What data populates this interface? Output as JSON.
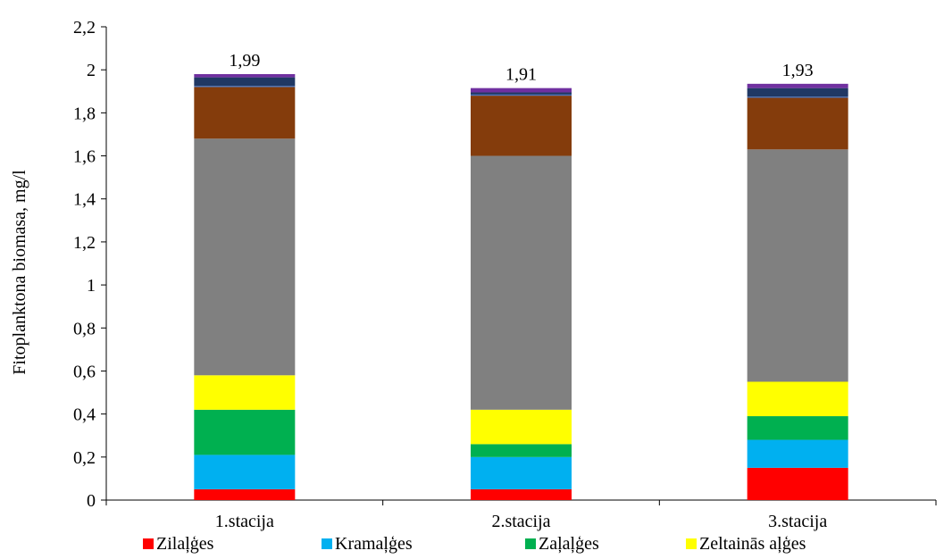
{
  "chart_data": {
    "type": "bar",
    "stacked": true,
    "title": "",
    "xlabel": "",
    "ylabel": "Fitoplanktona biomasa, mg/l",
    "ylim": [
      0,
      2.2
    ],
    "yticks": [
      "0",
      "0,2",
      "0,4",
      "0,6",
      "0,8",
      "1",
      "1,2",
      "1,4",
      "1,6",
      "1,8",
      "2",
      "2,2"
    ],
    "categories": [
      "1.stacija",
      "2.stacija",
      "3.stacija"
    ],
    "totals": [
      "1,99",
      "1,91",
      "1,93"
    ],
    "grid": false,
    "legend_position": "bottom",
    "series": [
      {
        "name": "Zilaļģes",
        "color": "#ff0000",
        "values": [
          0.05,
          0.05,
          0.15
        ]
      },
      {
        "name": "Kramaļģes",
        "color": "#00b0f0",
        "values": [
          0.16,
          0.15,
          0.13
        ]
      },
      {
        "name": "Zaļaļģes",
        "color": "#00b050",
        "values": [
          0.21,
          0.06,
          0.11
        ]
      },
      {
        "name": "Zeltainās aļģes",
        "color": "#ffff00",
        "values": [
          0.16,
          0.16,
          0.16
        ]
      },
      {
        "color": "#808080",
        "values": [
          1.1,
          1.18,
          1.08
        ]
      },
      {
        "color": "#843c0c",
        "values": [
          0.24,
          0.28,
          0.24
        ]
      },
      {
        "color": "#4472c4",
        "values": [
          0.005,
          0.005,
          0.005
        ]
      },
      {
        "color": "#203864",
        "values": [
          0.04,
          0.01,
          0.04
        ]
      },
      {
        "color": "#7030a0",
        "values": [
          0.015,
          0.02,
          0.02
        ]
      }
    ]
  }
}
